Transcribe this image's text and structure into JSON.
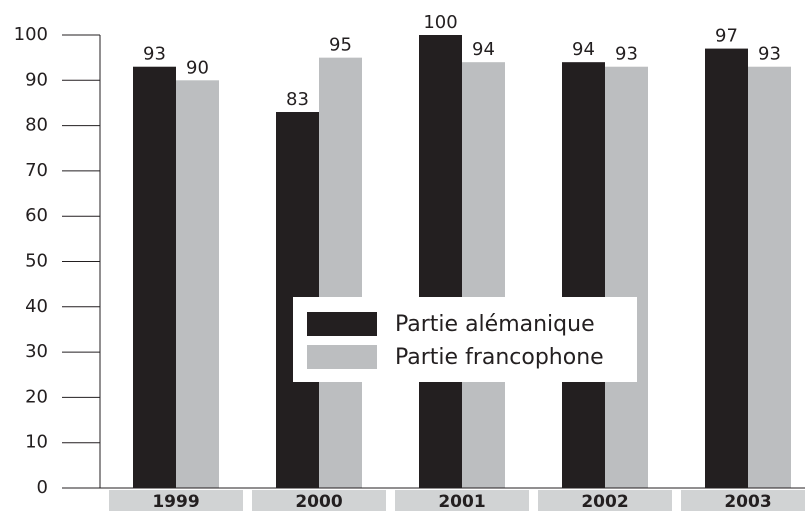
{
  "chart_data": {
    "type": "bar",
    "categories": [
      "1999",
      "2000",
      "2001",
      "2002",
      "2003"
    ],
    "series": [
      {
        "name": "Partie alémanique",
        "color": "#231f20",
        "values": [
          93,
          83,
          100,
          94,
          97
        ]
      },
      {
        "name": "Partie francophone",
        "color": "#bcbec0",
        "values": [
          90,
          95,
          94,
          93,
          93
        ]
      }
    ],
    "ylim": [
      0,
      100
    ],
    "yticks": [
      0,
      10,
      20,
      30,
      40,
      50,
      60,
      70,
      80,
      90,
      100
    ]
  }
}
